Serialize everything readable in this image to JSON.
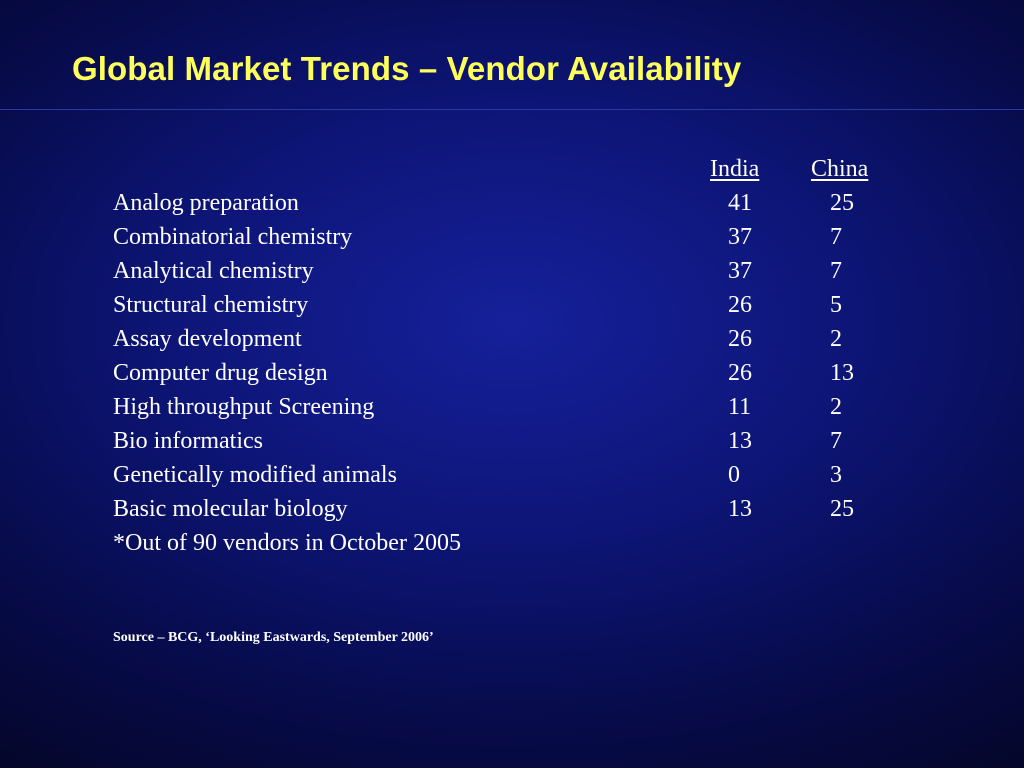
{
  "slide": {
    "title": "Global Market Trends – Vendor Availability",
    "columns": [
      "India",
      "China"
    ],
    "rows": [
      {
        "label": "Analog preparation",
        "india": "41",
        "china": "25"
      },
      {
        "label": "Combinatorial chemistry",
        "india": "37",
        "china": "7"
      },
      {
        "label": "Analytical chemistry",
        "india": "37",
        "china": "7"
      },
      {
        "label": "Structural chemistry",
        "india": "26",
        "china": "5"
      },
      {
        "label": "Assay development",
        "india": "26",
        "china": "2"
      },
      {
        "label": "Computer drug design",
        "india": "26",
        "china": "13"
      },
      {
        "label": "High throughput Screening",
        "india": "11",
        "china": "2"
      },
      {
        "label": "Bio informatics",
        "india": "13",
        "china": "7"
      },
      {
        "label": "Genetically modified animals",
        "india": "0",
        "china": "3"
      },
      {
        "label": "Basic molecular biology",
        "india": "13",
        "china": "25"
      }
    ],
    "footnote": "*Out of 90 vendors in October 2005",
    "source": "Source – BCG, ‘Looking Eastwards, September 2006’"
  },
  "colors": {
    "title": "#ffff5a",
    "text": "#ffffff",
    "background_center": "#16209a",
    "background_edge": "#03041c"
  }
}
